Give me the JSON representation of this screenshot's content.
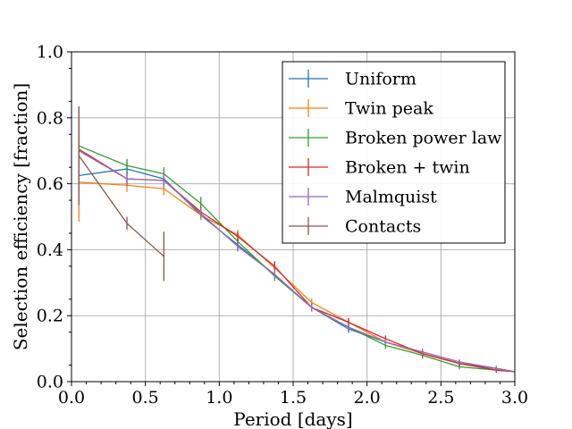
{
  "chart_data": {
    "type": "line",
    "title": "",
    "xlabel": "Period [days]",
    "ylabel": "Selection efficiency [fraction]",
    "xlim": [
      0.0,
      3.0
    ],
    "ylim": [
      0.0,
      1.0
    ],
    "xticks": [
      0.0,
      0.5,
      1.0,
      1.5,
      2.0,
      2.5,
      3.0
    ],
    "xtick_labels": [
      "0.0",
      "0.5",
      "1.0",
      "1.5",
      "2.0",
      "2.5",
      "3.0"
    ],
    "yticks": [
      0.0,
      0.2,
      0.4,
      0.6,
      0.8,
      1.0
    ],
    "ytick_labels": [
      "0.0",
      "0.2",
      "0.4",
      "0.6",
      "0.8",
      "1.0"
    ],
    "grid": true,
    "legend_position": "top-right",
    "series": [
      {
        "name": "Uniform",
        "color": "#1f77b4",
        "x": [
          0.05,
          0.375,
          0.625,
          0.875,
          1.125,
          1.375,
          1.625,
          1.875,
          2.125,
          2.375,
          2.625,
          2.875,
          3.0
        ],
        "y": [
          0.625,
          0.645,
          0.615,
          0.505,
          0.415,
          0.325,
          0.225,
          0.16,
          0.12,
          0.085,
          0.055,
          0.04,
          0.03
        ],
        "err": [
          0.03,
          0.02,
          0.02,
          0.015,
          0.015,
          0.015,
          0.012,
          0.012,
          0.012,
          0.01,
          0.01,
          0.008,
          0.0
        ]
      },
      {
        "name": "Twin peak",
        "color": "#ff7f0e",
        "x": [
          0.05,
          0.375,
          0.625,
          0.875,
          1.125,
          1.375,
          1.625,
          1.875,
          2.125,
          2.375,
          2.625,
          2.875,
          3.0
        ],
        "y": [
          0.605,
          0.595,
          0.585,
          0.505,
          0.445,
          0.345,
          0.24,
          0.18,
          0.12,
          0.085,
          0.055,
          0.035,
          0.03
        ],
        "err": [
          0.12,
          0.02,
          0.02,
          0.015,
          0.015,
          0.015,
          0.012,
          0.012,
          0.01,
          0.01,
          0.008,
          0.008,
          0.0
        ]
      },
      {
        "name": "Broken power law",
        "color": "#2ca02c",
        "x": [
          0.05,
          0.375,
          0.625,
          0.875,
          1.125,
          1.375,
          1.625,
          1.875,
          2.125,
          2.375,
          2.625,
          2.875,
          3.0
        ],
        "y": [
          0.715,
          0.655,
          0.63,
          0.54,
          0.425,
          0.32,
          0.225,
          0.165,
          0.11,
          0.08,
          0.045,
          0.035,
          0.03
        ],
        "err": [
          0.03,
          0.02,
          0.02,
          0.02,
          0.015,
          0.015,
          0.012,
          0.012,
          0.01,
          0.01,
          0.008,
          0.008,
          0.0
        ]
      },
      {
        "name": "Broken + twin",
        "color": "#d62728",
        "x": [
          0.05,
          0.375,
          0.625,
          0.875,
          1.125,
          1.375,
          1.625,
          1.875,
          2.125,
          2.375,
          2.625,
          2.875,
          3.0
        ],
        "y": [
          0.705,
          0.615,
          0.61,
          0.515,
          0.44,
          0.35,
          0.225,
          0.18,
          0.13,
          0.085,
          0.055,
          0.035,
          0.03
        ],
        "err": [
          0.03,
          0.02,
          0.02,
          0.015,
          0.015,
          0.015,
          0.012,
          0.012,
          0.01,
          0.01,
          0.008,
          0.008,
          0.0
        ]
      },
      {
        "name": "Malmquist",
        "color": "#9467bd",
        "x": [
          0.05,
          0.375,
          0.625,
          0.875,
          1.125,
          1.375,
          1.625,
          1.875,
          2.125,
          2.375,
          2.625,
          2.875,
          3.0
        ],
        "y": [
          0.7,
          0.615,
          0.61,
          0.51,
          0.41,
          0.325,
          0.225,
          0.165,
          0.12,
          0.09,
          0.06,
          0.04,
          0.03
        ],
        "err": [
          0.13,
          0.02,
          0.02,
          0.015,
          0.015,
          0.015,
          0.012,
          0.012,
          0.01,
          0.01,
          0.008,
          0.008,
          0.0
        ]
      },
      {
        "name": "Contacts",
        "color": "#8c564b",
        "x": [
          0.05,
          0.375,
          0.625
        ],
        "y": [
          0.685,
          0.48,
          0.38
        ],
        "err": [
          0.15,
          0.02,
          0.075
        ]
      }
    ]
  }
}
